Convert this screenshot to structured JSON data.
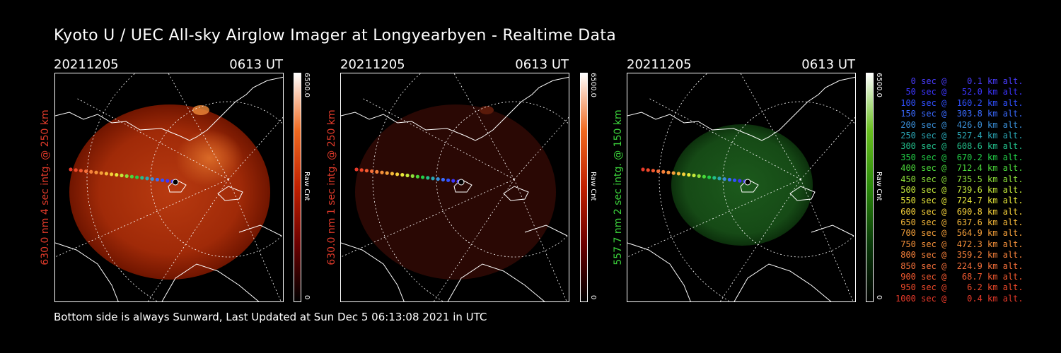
{
  "header": {
    "title": "Kyoto U / UEC All-sky Airglow Imager at Longyearbyen - Realtime Data"
  },
  "footer": {
    "text": "Bottom side is always Sunward, Last Updated at Sun Dec  5 06:13:08 2021 in UTC"
  },
  "panels": [
    {
      "date": "20211205",
      "time": "0613 UT",
      "side_label": "630.0 nm 4 sec intg. @ 250 km",
      "label_color": "#e03a2a",
      "cbar_max": "6500.0",
      "cbar_min": "0",
      "cbar_unit": "Raw Cnt",
      "colormap": "red",
      "intensity": "strong"
    },
    {
      "date": "20211205",
      "time": "0613 UT",
      "side_label": "630.0 nm 1 sec intg. @ 250 km",
      "label_color": "#e03a2a",
      "cbar_max": "6500.0",
      "cbar_min": "0",
      "cbar_unit": "Raw Cnt",
      "colormap": "red",
      "intensity": "faint"
    },
    {
      "date": "20211205",
      "time": "0613 UT",
      "side_label": "557.7 nm 2 sec intg. @ 150 km",
      "label_color": "#3bd13b",
      "cbar_max": "6500.0",
      "cbar_min": "0",
      "cbar_unit": "Raw Cnt",
      "colormap": "green",
      "intensity": "medium"
    }
  ],
  "legend": [
    {
      "text": "   0 sec @    0.1 km alt.",
      "color": "#4a3cff"
    },
    {
      "text": "  50 sec @   52.0 km alt.",
      "color": "#3c35ff"
    },
    {
      "text": " 100 sec @  160.2 km alt.",
      "color": "#3050ff"
    },
    {
      "text": " 150 sec @  303.8 km alt.",
      "color": "#3a6aff"
    },
    {
      "text": " 200 sec @  426.0 km alt.",
      "color": "#3a8fd8"
    },
    {
      "text": " 250 sec @  527.4 km alt.",
      "color": "#2aa6b5"
    },
    {
      "text": " 300 sec @  608.6 km alt.",
      "color": "#22c08c"
    },
    {
      "text": " 350 sec @  670.2 km alt.",
      "color": "#22d048"
    },
    {
      "text": " 400 sec @  712.4 km alt.",
      "color": "#4ad83a"
    },
    {
      "text": " 450 sec @  735.5 km alt.",
      "color": "#8ee03a"
    },
    {
      "text": " 500 sec @  739.6 km alt.",
      "color": "#c4e83a"
    },
    {
      "text": " 550 sec @  724.7 km alt.",
      "color": "#e8e83a"
    },
    {
      "text": " 600 sec @  690.8 km alt.",
      "color": "#f5d03a"
    },
    {
      "text": " 650 sec @  637.6 km alt.",
      "color": "#f5b83a"
    },
    {
      "text": " 700 sec @  564.9 km alt.",
      "color": "#f5a03a"
    },
    {
      "text": " 750 sec @  472.3 km alt.",
      "color": "#f5903a"
    },
    {
      "text": " 800 sec @  359.2 km alt.",
      "color": "#f5803a"
    },
    {
      "text": " 850 sec @  224.9 km alt.",
      "color": "#f5703a"
    },
    {
      "text": " 900 sec @   68.7 km alt.",
      "color": "#f55a30"
    },
    {
      "text": " 950 sec @    6.2 km alt.",
      "color": "#f04a2a"
    },
    {
      "text": "1000 sec @    0.4 km alt.",
      "color": "#e83a2a"
    }
  ]
}
